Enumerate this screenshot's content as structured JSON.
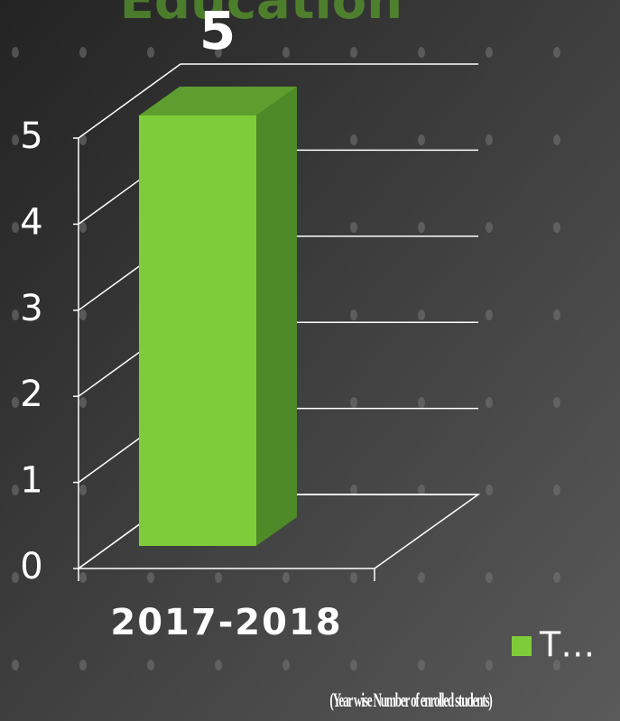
{
  "chart_data": {
    "type": "bar",
    "title": "Education’",
    "categories": [
      "2017-2018"
    ],
    "values": [
      5
    ],
    "color": "#7fcc3a",
    "series_name": "T…",
    "ylim": [
      0,
      5
    ],
    "yticks": [
      0,
      1,
      2,
      3,
      4,
      5
    ],
    "grid": true,
    "caption": "(Year wise Number of enrolled students)"
  }
}
